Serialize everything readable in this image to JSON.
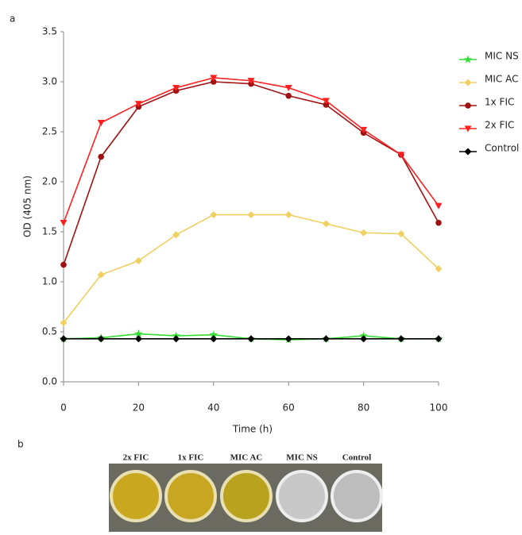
{
  "panel_labels": [
    "a",
    "b"
  ],
  "chart_data": {
    "type": "line",
    "xlabel": "Time (h)",
    "ylabel": "OD (405 nm)",
    "x": [
      0,
      10,
      20,
      30,
      40,
      50,
      60,
      70,
      80,
      90,
      100
    ],
    "xlim": [
      0,
      100
    ],
    "xticks": [
      0,
      20,
      40,
      60,
      80,
      100
    ],
    "ylim": [
      0,
      3.5
    ],
    "yticks": [
      {
        "value": 0,
        "label": "0.0"
      },
      0.5,
      {
        "value": 1,
        "label": "1.0"
      },
      1.5,
      {
        "value": 2,
        "label": "2.0"
      },
      2.5,
      {
        "value": 3,
        "label": "3.0"
      },
      3.5
    ],
    "legend": "right",
    "series": [
      {
        "name": "MIC NS",
        "color": "#33dd33",
        "marker": "star",
        "values": [
          0.43,
          0.44,
          0.48,
          0.46,
          0.47,
          0.43,
          0.42,
          0.43,
          0.46,
          0.43,
          0.43
        ]
      },
      {
        "name": "MIC AC",
        "color": "#f0d060",
        "marker": "diamond",
        "values": [
          0.59,
          1.07,
          1.21,
          1.47,
          1.67,
          1.67,
          1.67,
          1.58,
          1.49,
          1.48,
          1.13
        ]
      },
      {
        "name": "1x FIC",
        "color": "#a01010",
        "marker": "circle",
        "values": [
          1.17,
          2.25,
          2.75,
          2.91,
          3.0,
          2.98,
          2.86,
          2.77,
          2.49,
          2.27,
          1.59
        ]
      },
      {
        "name": "2x FIC",
        "color": "#ff2020",
        "marker": "triangle-down",
        "values": [
          1.59,
          2.59,
          2.78,
          2.94,
          3.04,
          3.01,
          2.94,
          2.81,
          2.52,
          2.27,
          1.76
        ]
      },
      {
        "name": "Control",
        "color": "#000000",
        "marker": "diamond",
        "values": [
          0.43,
          0.43,
          0.43,
          0.43,
          0.43,
          0.43,
          0.43,
          0.43,
          0.43,
          0.43,
          0.43
        ]
      }
    ]
  },
  "photo": {
    "labels": [
      "2x FIC",
      "1x FIC",
      "MIC AC",
      "MIC NS",
      "Control"
    ]
  }
}
